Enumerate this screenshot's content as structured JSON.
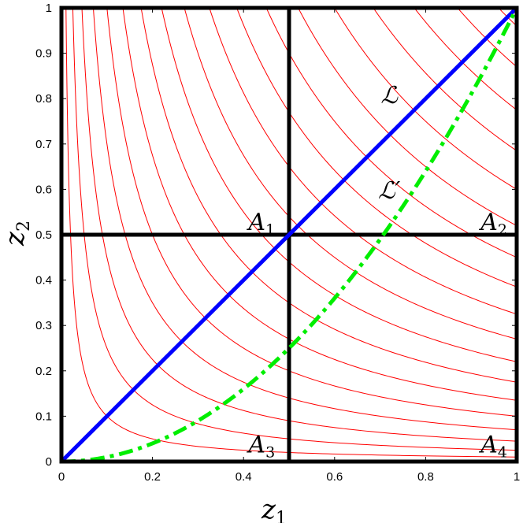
{
  "chart_data": {
    "type": "line",
    "x_axis": {
      "label_main": "z",
      "label_sub": "1",
      "lim": [
        0,
        1
      ],
      "ticks": [
        0,
        0.2,
        0.4,
        0.6,
        0.8,
        1
      ],
      "tick_labels": [
        "0",
        "0.2",
        "0.4",
        "0.6",
        "0.8",
        "1"
      ]
    },
    "y_axis": {
      "label_main": "z",
      "label_sub": "2",
      "lim": [
        0,
        1
      ],
      "ticks": [
        0,
        0.1,
        0.2,
        0.3,
        0.4,
        0.5,
        0.6,
        0.7,
        0.8,
        0.9,
        1
      ],
      "tick_labels": [
        "0",
        "0.1",
        "0.2",
        "0.3",
        "0.4",
        "0.5",
        "0.6",
        "0.7",
        "0.8",
        "0.9",
        "1"
      ]
    },
    "contours": {
      "color": "#ff0000",
      "equation": "z1 * z2 = c",
      "levels": [
        0.01,
        0.025,
        0.045,
        0.07,
        0.1,
        0.135,
        0.175,
        0.22,
        0.27,
        0.325,
        0.385,
        0.45,
        0.52,
        0.6,
        0.685,
        0.775,
        0.87,
        0.96
      ]
    },
    "series": [
      {
        "name": "ℒ",
        "color": "#0000ff",
        "style": "solid",
        "x": [
          0,
          1
        ],
        "y": [
          0,
          1
        ]
      },
      {
        "name": "ℒ′",
        "color": "#00ee00",
        "style": "dashdot",
        "equation": "z2 = z1^2",
        "x": [
          0,
          0.1,
          0.2,
          0.3,
          0.4,
          0.5,
          0.6,
          0.7,
          0.8,
          0.9,
          1
        ],
        "y": [
          0,
          0.01,
          0.04,
          0.09,
          0.16,
          0.25,
          0.36,
          0.49,
          0.64,
          0.81,
          1
        ]
      }
    ],
    "partition": {
      "x": 0.5,
      "y": 0.5,
      "color": "#000000"
    },
    "regions": [
      {
        "main": "A",
        "sub": "1",
        "x": 0.44,
        "y": 0.51
      },
      {
        "main": "A",
        "sub": "2",
        "x": 0.95,
        "y": 0.51
      },
      {
        "main": "A",
        "sub": "3",
        "x": 0.44,
        "y": 0.02
      },
      {
        "main": "A",
        "sub": "4",
        "x": 0.95,
        "y": 0.02
      }
    ],
    "curve_labels": [
      {
        "text": "ℒ",
        "x": 0.72,
        "y": 0.79
      },
      {
        "text": "ℒ′",
        "x": 0.72,
        "y": 0.58
      }
    ],
    "grid": false
  }
}
